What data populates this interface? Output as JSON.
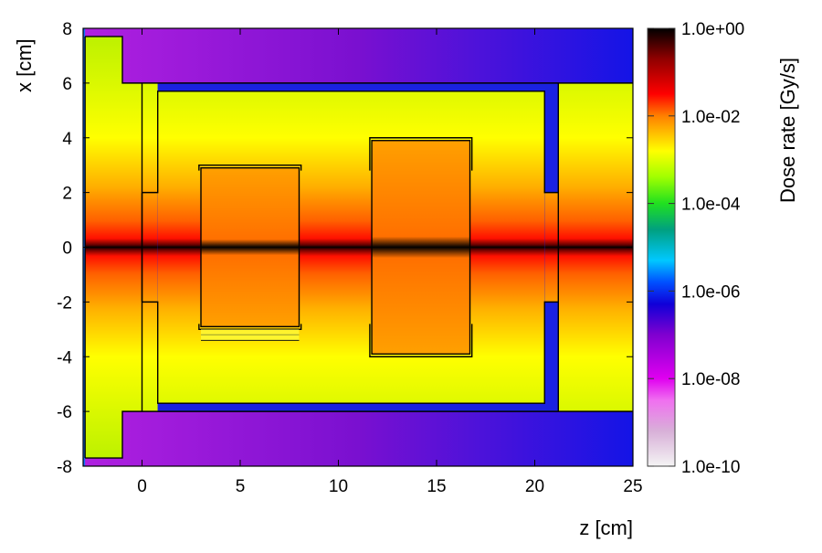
{
  "chart_data": {
    "type": "heatmap",
    "title": "",
    "xlabel": "z [cm]",
    "ylabel": "x [cm]",
    "xlim": [
      -3,
      25
    ],
    "ylim": [
      -8,
      8
    ],
    "xticks": [
      0,
      5,
      10,
      15,
      20,
      25
    ],
    "yticks": [
      -8,
      -6,
      -4,
      -2,
      0,
      2,
      4,
      6,
      8
    ],
    "colorbar": {
      "label": "Dose rate [Gy/s]",
      "scale": "log",
      "range": [
        1e-10,
        1
      ],
      "ticks": [
        "1.0e-10",
        "1.0e-08",
        "1.0e-06",
        "1.0e-04",
        "1.0e-02",
        "1.0e+00"
      ]
    },
    "description_values": {
      "beam_axis_max": "1.0e+00",
      "chamber_typical": "1.0e-03",
      "shield_outside": "1.0e-07"
    },
    "regions": [
      {
        "name": "left-block",
        "z": [
          -2.9,
          -1
        ],
        "x": [
          -7.7,
          7.7
        ],
        "fill": "chamber"
      },
      {
        "name": "front-wall",
        "z": [
          -1,
          0.8
        ],
        "x": [
          -6,
          6
        ],
        "fill": "chamber"
      },
      {
        "name": "chamber",
        "z": [
          0.8,
          20.5
        ],
        "x": [
          -5.7,
          5.7
        ],
        "fill": "chamber"
      },
      {
        "name": "rear-section",
        "z": [
          21.2,
          25
        ],
        "x": [
          -6,
          6
        ],
        "fill": "chamber"
      },
      {
        "name": "block-1",
        "z": [
          3,
          8
        ],
        "x": [
          -2.9,
          2.9
        ],
        "fill": "block"
      },
      {
        "name": "block-2",
        "z": [
          11.7,
          16.7
        ],
        "x": [
          -3.9,
          3.9
        ],
        "fill": "block"
      }
    ],
    "colors": {
      "outer": "#8a10d8",
      "outer_right": "#1818e8",
      "shield": "#1a22e0",
      "block": "#ff9a00"
    }
  }
}
